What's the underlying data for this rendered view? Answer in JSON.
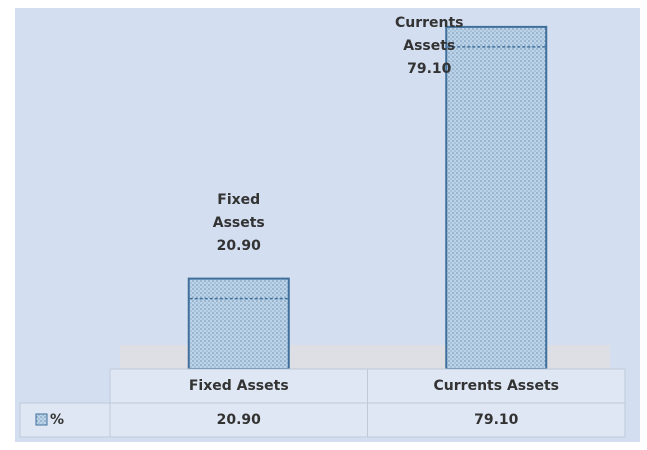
{
  "chart_data": {
    "type": "bar",
    "categories": [
      "Fixed Assets",
      "Currents Assets"
    ],
    "series": [
      {
        "name": "%",
        "color": "#bcd3e8",
        "values": [
          20.9,
          79.1
        ],
        "value_labels": [
          "20.90",
          "79.10"
        ]
      }
    ],
    "ylim": [
      0,
      80
    ],
    "data_table": true
  }
}
